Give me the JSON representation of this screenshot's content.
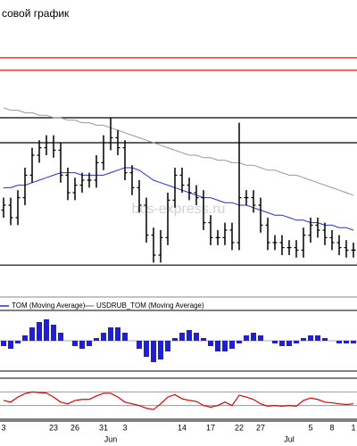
{
  "chart_data": [
    {
      "type": "ohlc",
      "title": "совой график",
      "watermark": "bcs-express.ru",
      "ylim": [
        0,
        100
      ],
      "color": "#000000",
      "x": [
        "3",
        null,
        null,
        null,
        null,
        null,
        null,
        "23",
        null,
        null,
        "26",
        null,
        null,
        null,
        "31",
        null,
        null,
        "3",
        null,
        null,
        null,
        null,
        null,
        null,
        null,
        "14",
        null,
        null,
        null,
        "17",
        null,
        null,
        null,
        "22",
        null,
        null,
        "27",
        null,
        null,
        null,
        null,
        null,
        null,
        "5",
        null,
        null,
        "8",
        null,
        null,
        "1"
      ],
      "months": [
        null,
        null,
        null,
        null,
        null,
        null,
        null,
        null,
        null,
        null,
        null,
        null,
        null,
        null,
        null,
        "Jun",
        null,
        null,
        null,
        null,
        null,
        null,
        null,
        null,
        null,
        null,
        null,
        null,
        null,
        null,
        null,
        null,
        null,
        null,
        null,
        null,
        null,
        null,
        null,
        null,
        "Jul",
        null,
        null,
        null,
        null,
        null,
        null,
        null,
        null,
        null
      ],
      "open": [
        23,
        25,
        20,
        28,
        37,
        45,
        48,
        50,
        47,
        37,
        30,
        33,
        35,
        35,
        42,
        50,
        52,
        48,
        38,
        32,
        25,
        13,
        5,
        12,
        27,
        37,
        33,
        30,
        28,
        18,
        12,
        12,
        15,
        10,
        28,
        28,
        25,
        17,
        10,
        10,
        8,
        8,
        7,
        13,
        17,
        15,
        12,
        10,
        8,
        7
      ],
      "high": [
        28,
        28,
        31,
        40,
        48,
        51,
        53,
        53,
        50,
        40,
        36,
        38,
        38,
        45,
        53,
        60,
        55,
        51,
        41,
        35,
        28,
        16,
        15,
        30,
        40,
        40,
        36,
        33,
        31,
        21,
        15,
        18,
        18,
        58,
        31,
        31,
        28,
        20,
        13,
        13,
        11,
        11,
        16,
        20,
        20,
        18,
        15,
        13,
        11,
        10
      ],
      "low": [
        20,
        17,
        17,
        25,
        34,
        42,
        45,
        44,
        34,
        27,
        27,
        30,
        32,
        32,
        39,
        47,
        45,
        35,
        29,
        22,
        10,
        2,
        2,
        9,
        24,
        30,
        27,
        25,
        15,
        9,
        9,
        9,
        7,
        7,
        25,
        22,
        14,
        7,
        7,
        5,
        5,
        4,
        4,
        10,
        12,
        9,
        7,
        5,
        4,
        4
      ],
      "close": [
        25,
        20,
        28,
        37,
        45,
        48,
        50,
        47,
        37,
        30,
        33,
        35,
        35,
        42,
        50,
        52,
        48,
        38,
        32,
        25,
        13,
        5,
        12,
        27,
        37,
        33,
        30,
        28,
        18,
        12,
        12,
        15,
        10,
        28,
        28,
        25,
        17,
        10,
        10,
        8,
        8,
        7,
        13,
        17,
        15,
        12,
        10,
        8,
        7,
        7
      ],
      "levels": [
        {
          "value": 84,
          "color": "#e00000"
        },
        {
          "value": 79,
          "color": "#e00000"
        },
        {
          "value": 60,
          "color": "#000000"
        },
        {
          "value": 50,
          "color": "#000000"
        },
        {
          "value": 1,
          "color": "#000000"
        }
      ],
      "series": [
        {
          "name": "TOM (Moving Average)",
          "color": "#2030e0",
          "values": [
            32,
            32,
            33,
            33,
            34,
            35,
            36,
            37,
            38,
            38,
            38,
            37,
            37,
            37,
            37,
            38,
            39,
            40,
            40,
            39,
            37,
            35,
            34,
            33,
            32,
            31,
            30,
            29,
            28,
            28,
            27,
            26,
            26,
            25,
            25,
            24,
            23,
            22,
            21,
            21,
            20,
            19,
            19,
            18,
            18,
            17,
            17,
            16,
            16,
            15
          ]
        },
        {
          "name": "USDRUB_TOM (Moving Average)",
          "color": "#9a9a9a",
          "values": [
            64,
            63,
            63,
            62,
            62,
            61,
            61,
            60,
            60,
            59,
            59,
            58,
            58,
            57,
            57,
            56,
            55,
            54,
            53,
            52,
            51,
            50,
            49,
            48,
            47,
            46,
            45,
            45,
            44,
            44,
            43,
            43,
            42,
            42,
            41,
            41,
            40,
            39,
            39,
            38,
            37,
            37,
            36,
            35,
            34,
            33,
            32,
            31,
            30,
            29
          ]
        }
      ]
    },
    {
      "type": "histogram",
      "ylim": [
        -10,
        10
      ],
      "color": "#2020d0",
      "values": [
        -2,
        -3,
        -1,
        2,
        5,
        7,
        8,
        6,
        3,
        0,
        -2,
        -3,
        -2,
        1,
        3,
        5,
        5,
        3,
        0,
        -3,
        -6,
        -8,
        -7,
        -4,
        1,
        3,
        4,
        3,
        1,
        -2,
        -4,
        -4,
        -3,
        -1,
        2,
        3,
        2,
        0,
        -1,
        -2,
        -2,
        -1,
        1,
        2,
        2,
        1,
        0,
        -1,
        -1,
        -1
      ]
    },
    {
      "type": "line",
      "ylim": [
        0,
        100
      ],
      "color": "#e00000",
      "levels": [
        70,
        30
      ],
      "values": [
        45,
        40,
        55,
        65,
        70,
        68,
        67,
        55,
        40,
        35,
        45,
        48,
        48,
        58,
        66,
        66,
        55,
        40,
        35,
        30,
        22,
        18,
        35,
        55,
        62,
        50,
        45,
        42,
        30,
        25,
        30,
        40,
        30,
        60,
        55,
        48,
        35,
        28,
        30,
        28,
        30,
        28,
        45,
        52,
        48,
        40,
        38,
        35,
        33,
        35
      ]
    }
  ]
}
